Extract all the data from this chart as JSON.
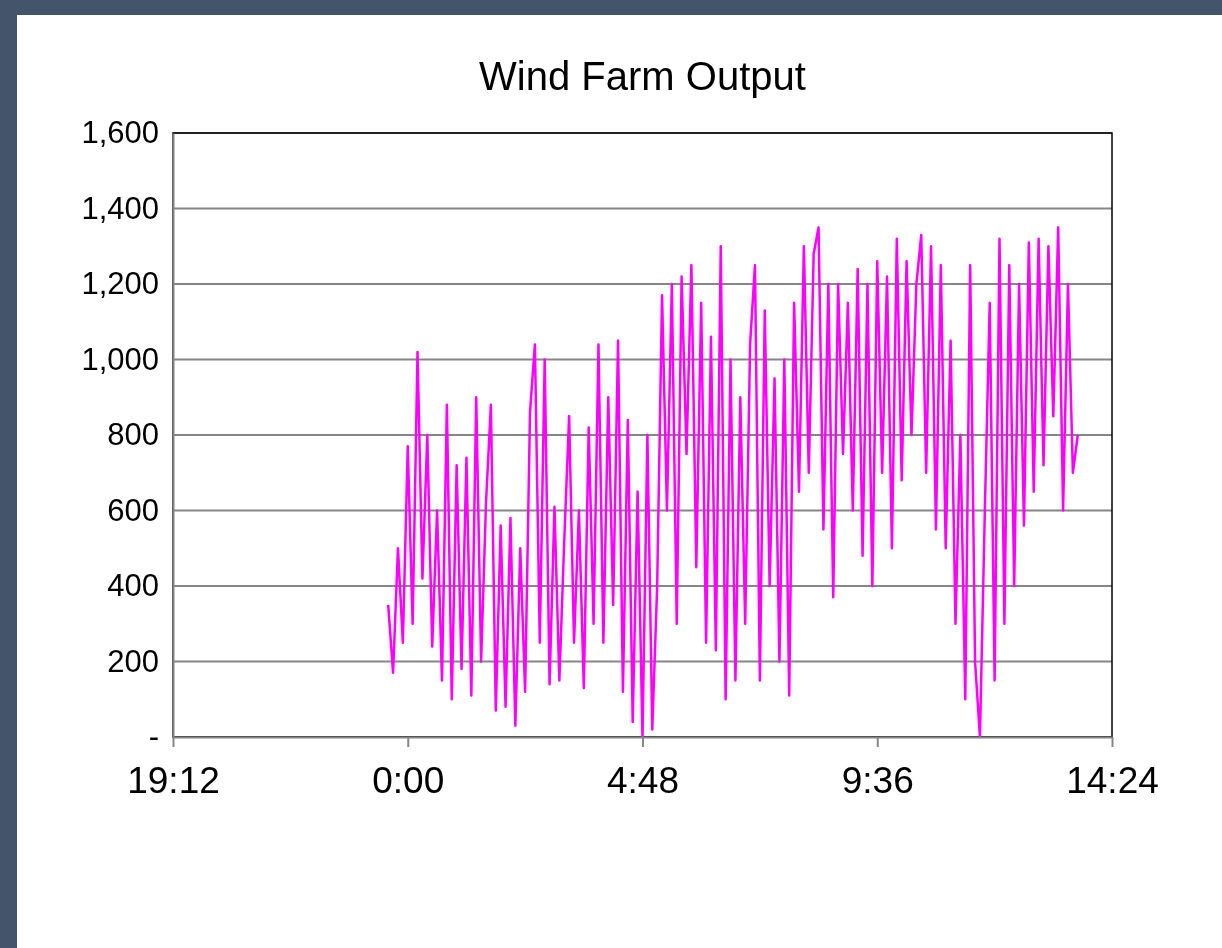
{
  "chart_data": {
    "type": "line",
    "title": "Wind Farm Output",
    "xlim": [
      "2000-01-01T19:12",
      "2000-01-02T14:24"
    ],
    "xticks": [
      {
        "value": "2000-01-01T19:12",
        "label": "19:12"
      },
      {
        "value": "2000-01-02T00:00",
        "label": "0:00"
      },
      {
        "value": "2000-01-02T04:48",
        "label": "4:48"
      },
      {
        "value": "2000-01-02T09:36",
        "label": "9:36"
      },
      {
        "value": "2000-01-02T14:24",
        "label": "14:24"
      }
    ],
    "ylim": [
      0,
      1600
    ],
    "yticks": [
      {
        "value": 0,
        "label": "-"
      },
      {
        "value": 200,
        "label": "200"
      },
      {
        "value": 400,
        "label": "400"
      },
      {
        "value": 600,
        "label": "600"
      },
      {
        "value": 800,
        "label": "800"
      },
      {
        "value": 1000,
        "label": "1,000"
      },
      {
        "value": 1200,
        "label": "1,200"
      },
      {
        "value": 1400,
        "label": "1,400"
      },
      {
        "value": 1600,
        "label": "1,600"
      }
    ],
    "grid": "y",
    "series": [
      {
        "color": "#ff00ff",
        "x": [
          "2000-01-01T23:36",
          "2000-01-01T23:42",
          "2000-01-01T23:48",
          "2000-01-01T23:54",
          "2000-01-02T00:00",
          "2000-01-02T00:06",
          "2000-01-02T00:12",
          "2000-01-02T00:18",
          "2000-01-02T00:24",
          "2000-01-02T00:30",
          "2000-01-02T00:36",
          "2000-01-02T00:42",
          "2000-01-02T00:48",
          "2000-01-02T00:54",
          "2000-01-02T01:00",
          "2000-01-02T01:06",
          "2000-01-02T01:12",
          "2000-01-02T01:18",
          "2000-01-02T01:24",
          "2000-01-02T01:30",
          "2000-01-02T01:36",
          "2000-01-02T01:42",
          "2000-01-02T01:48",
          "2000-01-02T01:54",
          "2000-01-02T02:00",
          "2000-01-02T02:06",
          "2000-01-02T02:12",
          "2000-01-02T02:18",
          "2000-01-02T02:24",
          "2000-01-02T02:30",
          "2000-01-02T02:36",
          "2000-01-02T02:42",
          "2000-01-02T02:48",
          "2000-01-02T02:54",
          "2000-01-02T03:00",
          "2000-01-02T03:06",
          "2000-01-02T03:12",
          "2000-01-02T03:18",
          "2000-01-02T03:24",
          "2000-01-02T03:30",
          "2000-01-02T03:36",
          "2000-01-02T03:42",
          "2000-01-02T03:48",
          "2000-01-02T03:54",
          "2000-01-02T04:00",
          "2000-01-02T04:06",
          "2000-01-02T04:12",
          "2000-01-02T04:18",
          "2000-01-02T04:24",
          "2000-01-02T04:30",
          "2000-01-02T04:36",
          "2000-01-02T04:42",
          "2000-01-02T04:48",
          "2000-01-02T04:54",
          "2000-01-02T05:00",
          "2000-01-02T05:06",
          "2000-01-02T05:12",
          "2000-01-02T05:18",
          "2000-01-02T05:24",
          "2000-01-02T05:30",
          "2000-01-02T05:36",
          "2000-01-02T05:42",
          "2000-01-02T05:48",
          "2000-01-02T05:54",
          "2000-01-02T06:00",
          "2000-01-02T06:06",
          "2000-01-02T06:12",
          "2000-01-02T06:18",
          "2000-01-02T06:24",
          "2000-01-02T06:30",
          "2000-01-02T06:36",
          "2000-01-02T06:42",
          "2000-01-02T06:48",
          "2000-01-02T06:54",
          "2000-01-02T07:00",
          "2000-01-02T07:06",
          "2000-01-02T07:12",
          "2000-01-02T07:18",
          "2000-01-02T07:24",
          "2000-01-02T07:30",
          "2000-01-02T07:36",
          "2000-01-02T07:42",
          "2000-01-02T07:48",
          "2000-01-02T07:54",
          "2000-01-02T08:00",
          "2000-01-02T08:06",
          "2000-01-02T08:12",
          "2000-01-02T08:18",
          "2000-01-02T08:24",
          "2000-01-02T08:30",
          "2000-01-02T08:36",
          "2000-01-02T08:42",
          "2000-01-02T08:48",
          "2000-01-02T08:54",
          "2000-01-02T09:00",
          "2000-01-02T09:06",
          "2000-01-02T09:12",
          "2000-01-02T09:18",
          "2000-01-02T09:24",
          "2000-01-02T09:30",
          "2000-01-02T09:36",
          "2000-01-02T09:42",
          "2000-01-02T09:48",
          "2000-01-02T09:54",
          "2000-01-02T10:00",
          "2000-01-02T10:06",
          "2000-01-02T10:12",
          "2000-01-02T10:18",
          "2000-01-02T10:24",
          "2000-01-02T10:30",
          "2000-01-02T10:36",
          "2000-01-02T10:42",
          "2000-01-02T10:48",
          "2000-01-02T10:54",
          "2000-01-02T11:00",
          "2000-01-02T11:06",
          "2000-01-02T11:12",
          "2000-01-02T11:18",
          "2000-01-02T11:24",
          "2000-01-02T11:30",
          "2000-01-02T11:36",
          "2000-01-02T11:42",
          "2000-01-02T11:48",
          "2000-01-02T11:54",
          "2000-01-02T12:00",
          "2000-01-02T12:06",
          "2000-01-02T12:12",
          "2000-01-02T12:18",
          "2000-01-02T12:24",
          "2000-01-02T12:30",
          "2000-01-02T12:36",
          "2000-01-02T12:42",
          "2000-01-02T12:48",
          "2000-01-02T12:54",
          "2000-01-02T13:00",
          "2000-01-02T13:06",
          "2000-01-02T13:12",
          "2000-01-02T13:18",
          "2000-01-02T13:24",
          "2000-01-02T13:30",
          "2000-01-02T13:36",
          "2000-01-02T13:42"
        ],
        "values": [
          350,
          170,
          500,
          250,
          770,
          300,
          1020,
          420,
          800,
          240,
          600,
          150,
          880,
          100,
          720,
          180,
          740,
          110,
          900,
          200,
          620,
          880,
          70,
          560,
          80,
          580,
          30,
          500,
          120,
          860,
          1040,
          250,
          1000,
          140,
          610,
          150,
          520,
          850,
          250,
          600,
          130,
          820,
          300,
          1040,
          250,
          900,
          350,
          1050,
          120,
          840,
          40,
          650,
          0,
          800,
          20,
          400,
          1170,
          600,
          1200,
          300,
          1220,
          750,
          1250,
          450,
          1150,
          250,
          1060,
          230,
          1300,
          100,
          1000,
          150,
          900,
          300,
          1040,
          1250,
          150,
          1130,
          400,
          950,
          200,
          1000,
          110,
          1150,
          650,
          1300,
          700,
          1280,
          1350,
          550,
          1200,
          370,
          1200,
          750,
          1150,
          600,
          1240,
          480,
          1200,
          400,
          1260,
          700,
          1220,
          500,
          1320,
          680,
          1260,
          800,
          1200,
          1330,
          700,
          1300,
          550,
          1250,
          500,
          1050,
          300,
          800,
          100,
          1250,
          200,
          0,
          600,
          1150,
          150,
          1320,
          300,
          1250,
          400,
          1200,
          560,
          1310,
          650,
          1320,
          720,
          1300,
          850,
          1350,
          600,
          1200,
          700,
          800
        ]
      }
    ]
  }
}
